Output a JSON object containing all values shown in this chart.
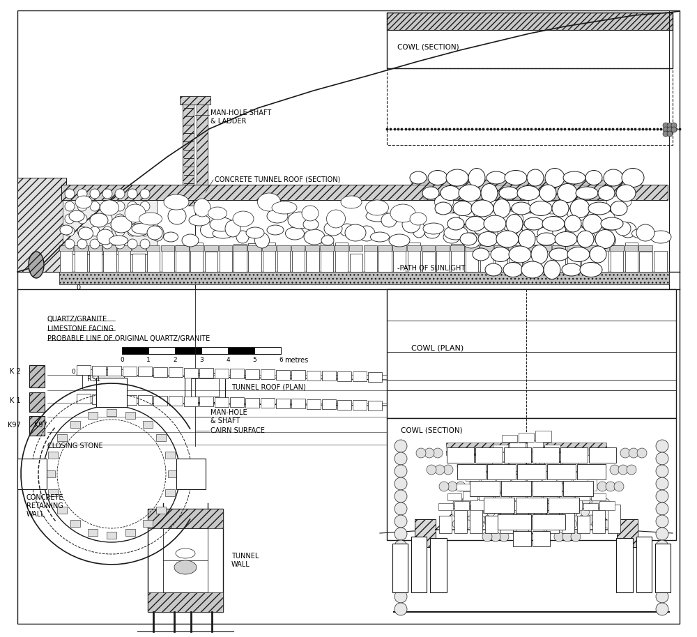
{
  "bg_color": "#ffffff",
  "line_color": "#1a1a1a",
  "labels": {
    "man_hole_shaft": "MAN-HOLE SHAFT\n& LADDER",
    "concrete_tunnel_roof": "CONCRETE TUNNEL ROOF (SECTION)",
    "path_of_sunlight": "PATH OF SUNLIGHT",
    "cowl_section_top": "COWL (SECTION)",
    "cowl_plan": "COWL (PLAN)",
    "cowl_section_bottom": "COWL (SECTION)",
    "tunnel_roof_plan": "TUNNEL ROOF (PLAN)",
    "quartz_granite": "QUARTZ/GRANITE",
    "limestone_facing": "LIMESTONE FACING",
    "probable_line": "PROBABLE LINE OF ORIGINAL QUARTZ/GRANITE",
    "closing_stone": "CLOSING STONE",
    "man_hole_shaft_plan": "MAN-HOLE\n& SHAFT",
    "cairn_surface": "CAIRN SURFACE",
    "concrete_retaining": "CONCRETE\nRETAINING\nWALL",
    "tunnel_wall": "TUNNEL\nWALL",
    "k2": "K 2",
    "k1": "K 1",
    "k97": "K97",
    "rs1": "RS1",
    "zero_marker": "0",
    "scale_label": "metres",
    "scale_ticks": [
      0,
      1,
      2,
      3,
      4,
      5,
      6
    ]
  }
}
